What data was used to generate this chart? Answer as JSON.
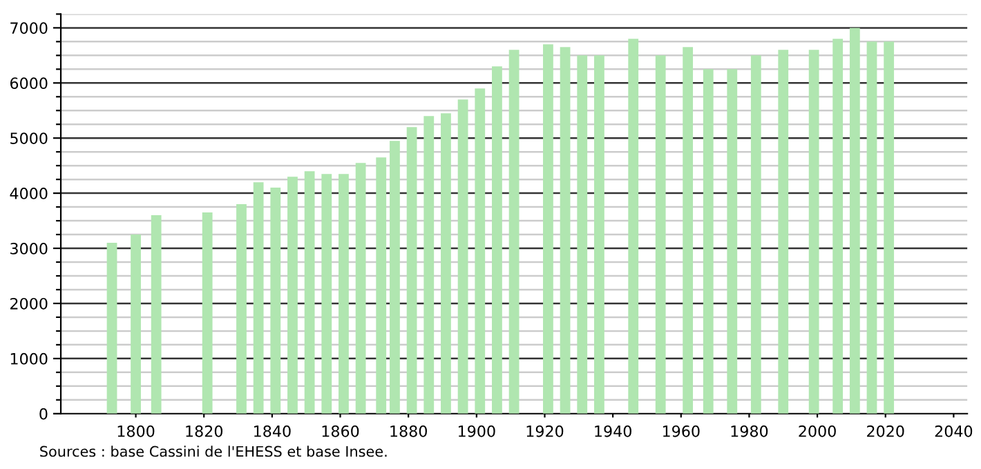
{
  "chart_data": {
    "type": "bar",
    "x": [
      1793,
      1800,
      1806,
      1821,
      1831,
      1836,
      1841,
      1846,
      1851,
      1856,
      1861,
      1866,
      1872,
      1876,
      1881,
      1886,
      1891,
      1896,
      1901,
      1906,
      1911,
      1921,
      1926,
      1931,
      1936,
      1946,
      1954,
      1962,
      1968,
      1975,
      1982,
      1990,
      1999,
      2006,
      2011,
      2016,
      2021
    ],
    "values": [
      3100,
      3250,
      3600,
      3650,
      3800,
      4200,
      4100,
      4300,
      4400,
      4350,
      4350,
      4550,
      4650,
      4950,
      5200,
      5400,
      5450,
      5700,
      5900,
      6300,
      6600,
      6700,
      6650,
      6500,
      6500,
      6800,
      6500,
      6650,
      6250,
      6250,
      6500,
      6600,
      6600,
      6800,
      7000,
      6750,
      6750
    ],
    "color": "#b0e6b0",
    "xlim": [
      1778,
      2044
    ],
    "xticks": [
      1800,
      1820,
      1840,
      1860,
      1880,
      1900,
      1920,
      1940,
      1960,
      1980,
      2000,
      2020,
      2040
    ],
    "ylim": [
      0,
      7250
    ],
    "yticks": [
      0,
      {
        "value": 250,
        "label": null
      },
      {
        "value": 500,
        "label": null
      },
      {
        "value": 750,
        "label": null
      },
      1000,
      {
        "value": 1250,
        "label": null
      },
      {
        "value": 1500,
        "label": null
      },
      {
        "value": 1750,
        "label": null
      },
      2000,
      {
        "value": 2250,
        "label": null
      },
      {
        "value": 2500,
        "label": null
      },
      {
        "value": 2750,
        "label": null
      },
      3000,
      {
        "value": 3250,
        "label": null
      },
      {
        "value": 3500,
        "label": null
      },
      {
        "value": 3750,
        "label": null
      },
      4000,
      {
        "value": 4250,
        "label": null
      },
      {
        "value": 4500,
        "label": null
      },
      {
        "value": 4750,
        "label": null
      },
      5000,
      {
        "value": 5250,
        "label": null
      },
      {
        "value": 5500,
        "label": null
      },
      {
        "value": 5750,
        "label": null
      },
      6000,
      {
        "value": 6250,
        "label": null
      },
      {
        "value": 6500,
        "label": null
      },
      {
        "value": 6750,
        "label": null
      },
      7000,
      {
        "value": 7250,
        "label": null
      }
    ],
    "grid": "y",
    "annotations": [
      "Sources : base Cassini de l'EHESS et base Insee."
    ]
  }
}
